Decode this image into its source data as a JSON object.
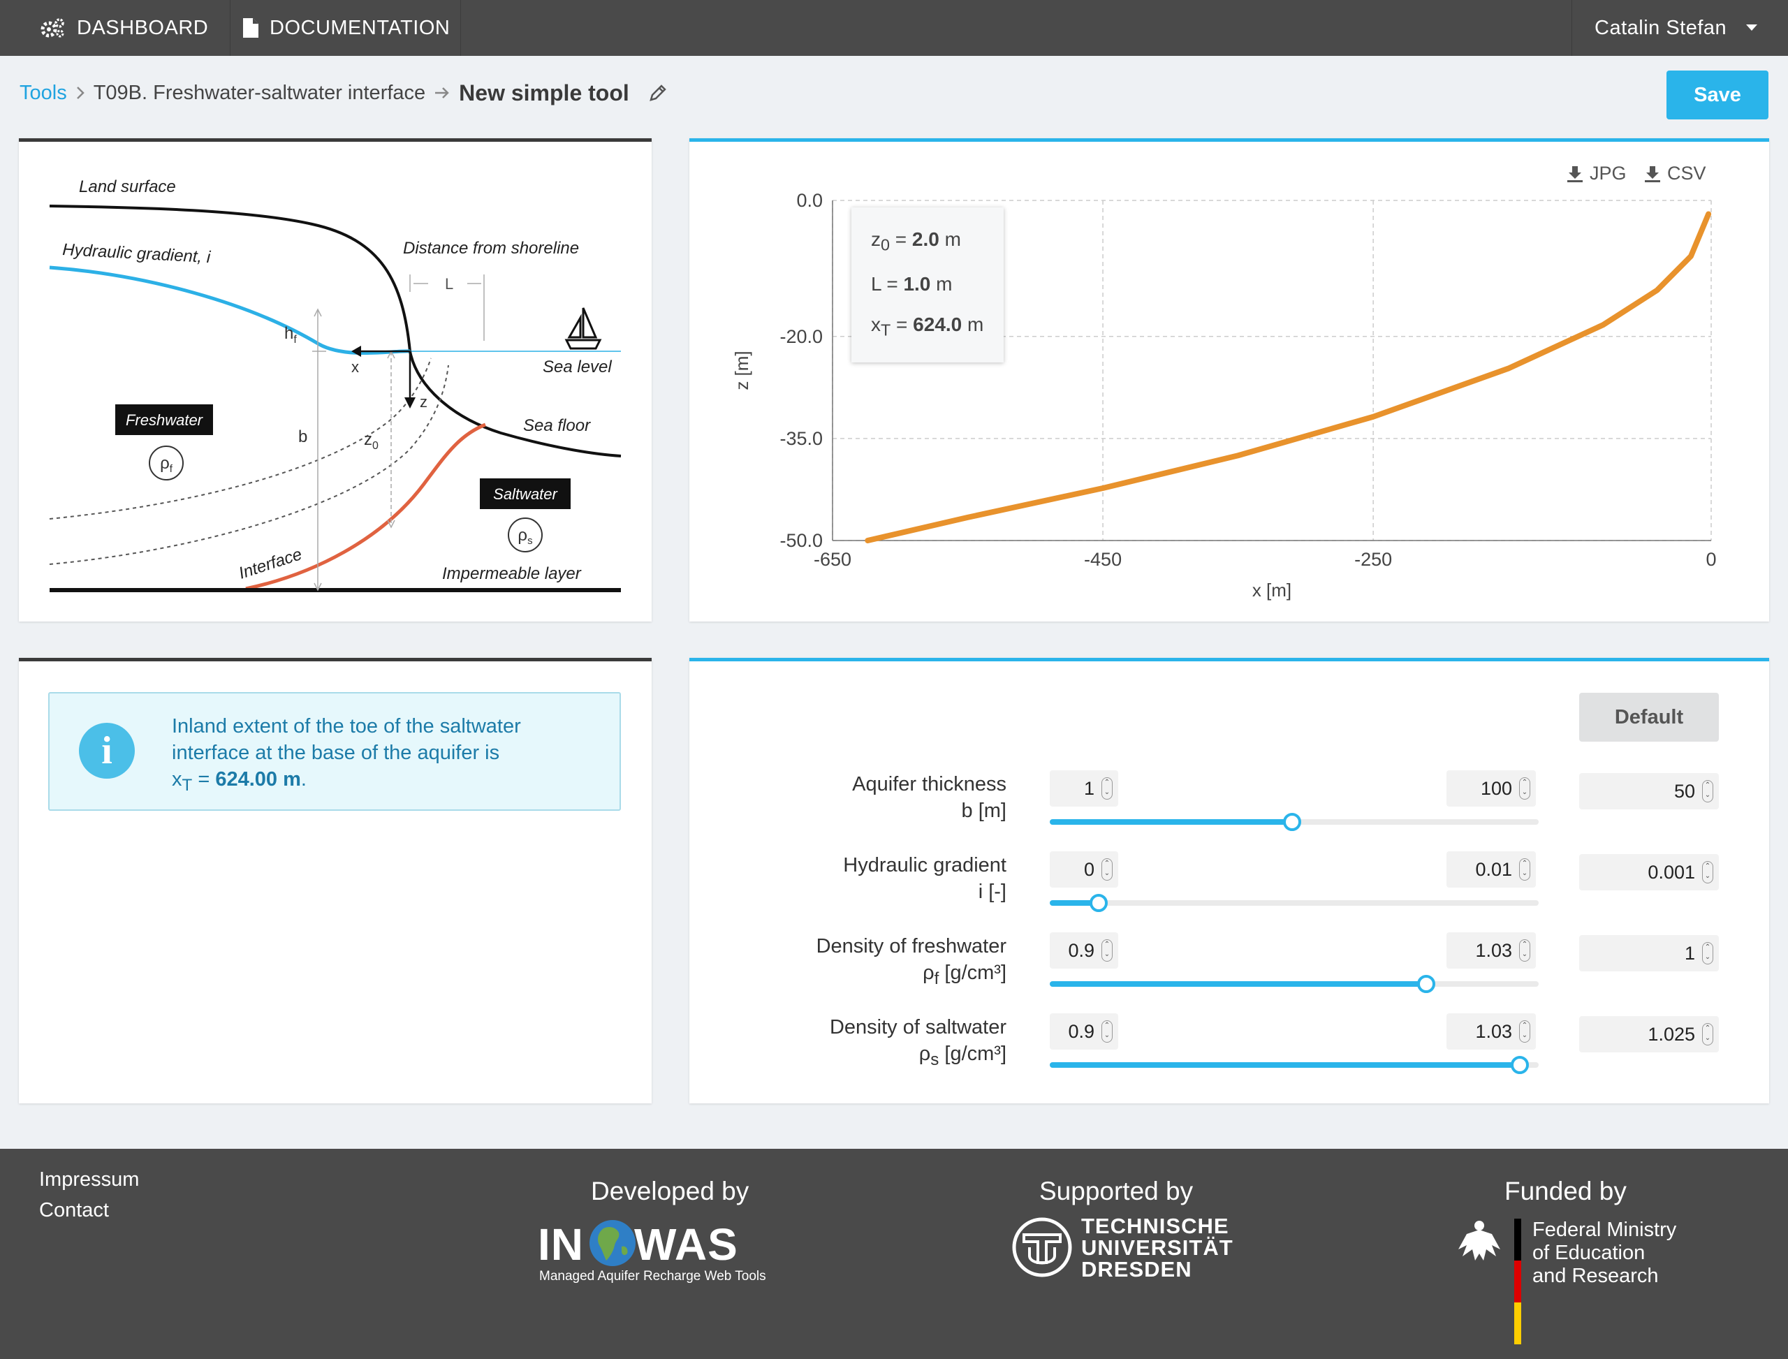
{
  "nav": {
    "dashboard": "DASHBOARD",
    "documentation": "DOCUMENTATION",
    "user": "Catalin Stefan"
  },
  "breadcrumb": {
    "tools": "Tools",
    "tool_name": "T09B. Freshwater-saltwater interface",
    "instance": "New simple tool"
  },
  "save_label": "Save",
  "diagram": {
    "land_surface": "Land surface",
    "hydraulic_gradient": "Hydraulic gradient, i",
    "distance_from_shoreline": "Distance from shoreline",
    "L": "L",
    "hf_h": "h",
    "hf_sub": "f",
    "x": "x",
    "z": "z",
    "sea_level": "Sea level",
    "sea_floor": "Sea floor",
    "freshwater": "Freshwater",
    "rho_f_base": "ρ",
    "rho_f_sub": "f",
    "b": "b",
    "z0_base": "z",
    "z0_sub": "0",
    "saltwater": "Saltwater",
    "rho_s_base": "ρ",
    "rho_s_sub": "s",
    "interface": "Interface",
    "impermeable_layer": "Impermeable layer"
  },
  "chart_panel": {
    "jpg": "JPG",
    "csv": "CSV",
    "tooltip": {
      "z0_label": "z",
      "z0_sub": "0",
      "z0_eq": " = ",
      "z0_value": "2.0",
      "z0_unit": " m",
      "L_label": "L = ",
      "L_value": "1.0",
      "L_unit": " m",
      "xT_label": "x",
      "xT_sub": "T",
      "xT_eq": " = ",
      "xT_value": "624.0",
      "xT_unit": " m"
    }
  },
  "chart_data": {
    "type": "line",
    "xlabel": "x [m]",
    "ylabel": "z [m]",
    "xlim": [
      -650,
      0
    ],
    "ylim": [
      -50,
      0
    ],
    "xticks": [
      "-650",
      "-450",
      "-250",
      "0"
    ],
    "yticks": [
      "0.0",
      "-20.0",
      "-35.0",
      "-50.0"
    ],
    "grid": true,
    "series": [
      {
        "color": "#e8922c",
        "x": [
          -624,
          -550,
          -450,
          -350,
          -250,
          -150,
          -80,
          -40,
          -15,
          -2
        ],
        "y": [
          -50,
          -46.6,
          -42.3,
          -37.5,
          -31.8,
          -24.7,
          -18.3,
          -13.2,
          -8.2,
          -2.0
        ]
      }
    ]
  },
  "info": {
    "text": "Inland extent of the toe of the saltwater interface at the base of the aquifer is",
    "xT_base": "x",
    "xT_sub": "T",
    "xT_eq": " = ",
    "xT_value": "624.00 m",
    "end": "."
  },
  "params": {
    "default_label": "Default",
    "items": [
      {
        "name": "Aquifer thickness",
        "symbol": "b [m]",
        "min": "1",
        "max": "100",
        "value": "50",
        "fraction": 0.495
      },
      {
        "name": "Hydraulic gradient",
        "symbol": "i [-]",
        "min": "0",
        "max": "0.01",
        "value": "0.001",
        "fraction": 0.1
      },
      {
        "name": "Density of freshwater",
        "symbol_base": "ρ",
        "symbol_sub": "f",
        "symbol_unit": " [g/cm³]",
        "min": "0.9",
        "max": "1.03",
        "value": "1",
        "fraction": 0.77
      },
      {
        "name": "Density of saltwater",
        "symbol_base": "ρ",
        "symbol_sub": "s",
        "symbol_unit": " [g/cm³]",
        "min": "0.9",
        "max": "1.03",
        "value": "1.025",
        "fraction": 0.962
      }
    ]
  },
  "footer": {
    "impressum": "Impressum",
    "contact": "Contact",
    "developed_by": "Developed by",
    "inowas_in": "IN",
    "inowas_was": "WAS",
    "inowas_tagline": "Managed Aquifer Recharge Web Tools",
    "supported_by": "Supported by",
    "tud_line1": "TECHNISCHE",
    "tud_line2": "UNIVERSITÄT",
    "tud_line3": "DRESDEN",
    "funded_by": "Funded by",
    "bmbf_line1": "Federal Ministry",
    "bmbf_line2": "of Education",
    "bmbf_line3": "and Research"
  },
  "colors": {
    "accent": "#2ab4ea",
    "navbar": "#4a4a4a",
    "curve": "#e8922c",
    "info_text": "#1c7ba8",
    "interface_line": "#e06240"
  }
}
